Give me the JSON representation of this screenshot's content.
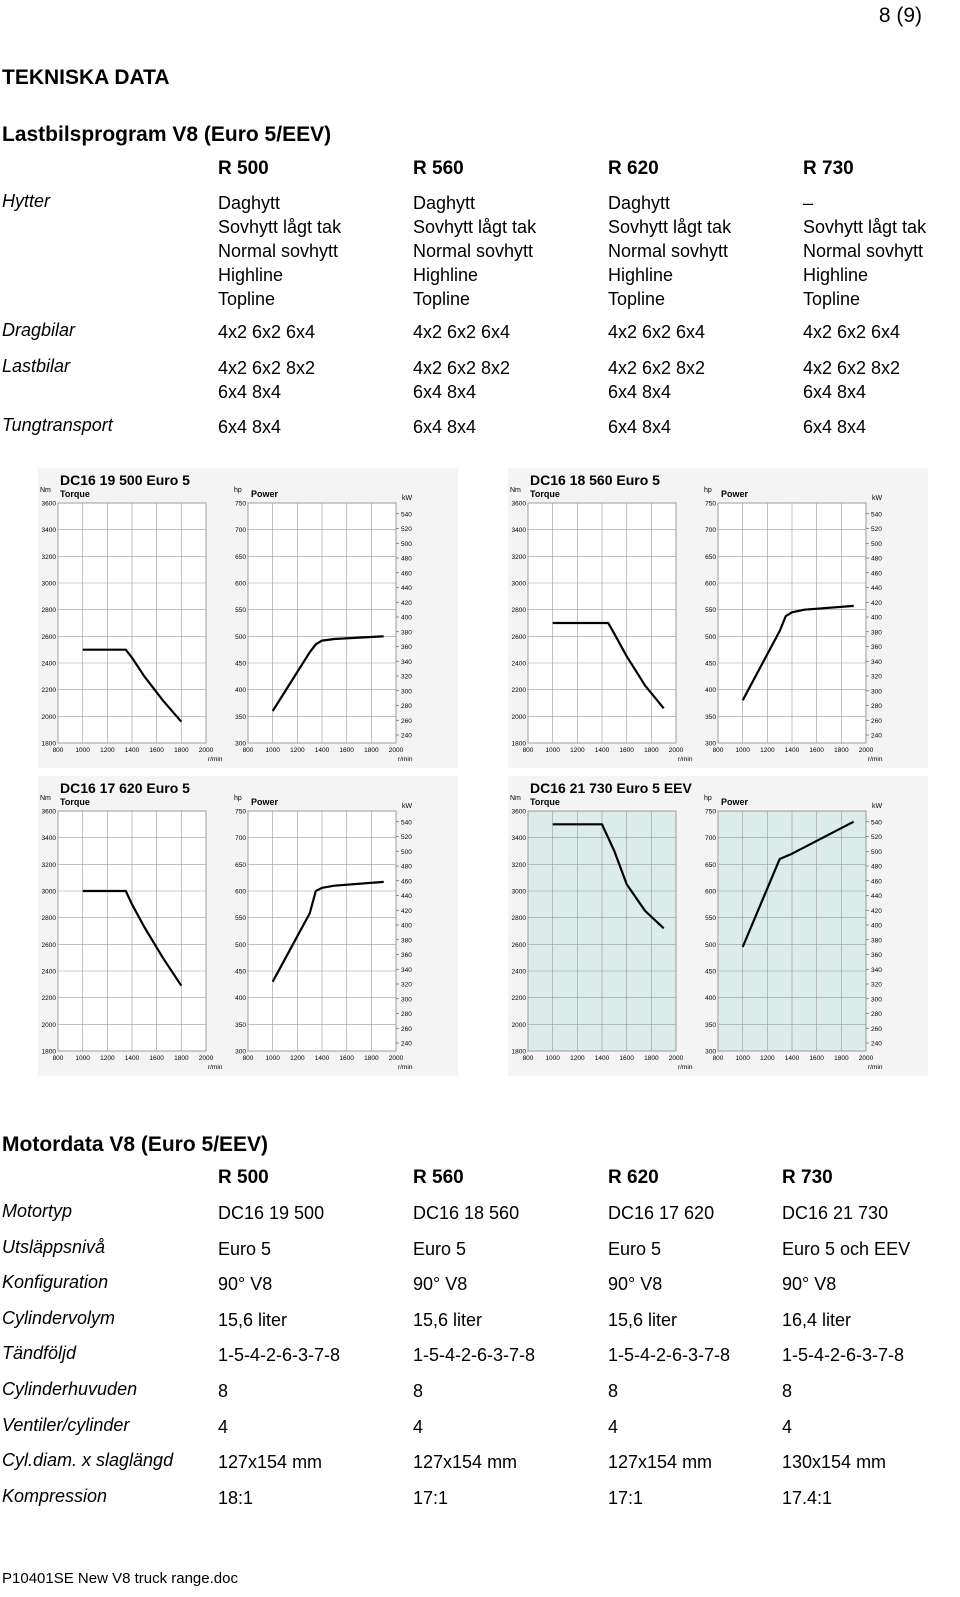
{
  "page_number": "8 (9)",
  "section_title": "TEKNISKA DATA",
  "program_title": "Lastbilsprogram V8 (Euro 5/EEV)",
  "models": [
    "R 500",
    "R 560",
    "R 620",
    "R 730"
  ],
  "program_rows": [
    {
      "label": "Hytter",
      "cells": [
        [
          "Daghytt",
          "Sovhytt lågt tak",
          "Normal sovhytt",
          "Highline",
          "Topline"
        ],
        [
          "Daghytt",
          "Sovhytt lågt tak",
          "Normal sovhytt",
          "Highline",
          "Topline"
        ],
        [
          "Daghytt",
          "Sovhytt lågt tak",
          "Normal sovhytt",
          "Highline",
          "Topline"
        ],
        [
          "–",
          "Sovhytt lågt tak",
          "Normal sovhytt",
          "Highline",
          "Topline"
        ]
      ]
    },
    {
      "label": "Dragbilar",
      "cells": [
        [
          "4x2 6x2 6x4"
        ],
        [
          "4x2 6x2 6x4"
        ],
        [
          "4x2 6x2 6x4"
        ],
        [
          "4x2 6x2 6x4"
        ]
      ]
    },
    {
      "label": "Lastbilar",
      "cells": [
        [
          "4x2 6x2 8x2",
          "6x4 8x4"
        ],
        [
          "4x2 6x2 8x2",
          "6x4 8x4"
        ],
        [
          "4x2 6x2 8x2",
          "6x4 8x4"
        ],
        [
          "4x2 6x2 8x2",
          "6x4 8x4"
        ]
      ]
    },
    {
      "label": "Tungtransport",
      "cells": [
        [
          "6x4 8x4"
        ],
        [
          "6x4 8x4"
        ],
        [
          "6x4 8x4"
        ],
        [
          "6x4 8x4"
        ]
      ]
    }
  ],
  "chart_data": [
    {
      "type": "line",
      "title": "DC16 19 500 Euro 5",
      "torque_label": "Torque",
      "power_label": "Power",
      "x_unit": "r/min",
      "torque_unit": "Nm",
      "power_unit_hp": "hp",
      "power_unit_kw": "kW",
      "x_ticks": [
        "800",
        "1000",
        "1200",
        "1400",
        "1600",
        "1800",
        "2000"
      ],
      "torque_ticks": [
        "1800",
        "2000",
        "2200",
        "2400",
        "2600",
        "2800",
        "3000",
        "3200",
        "3400",
        "3600"
      ],
      "hp_ticks": [
        "300",
        "350",
        "400",
        "450",
        "500",
        "550",
        "600",
        "650",
        "700",
        "750"
      ],
      "kw_ticks": [
        "240",
        "260",
        "280",
        "300",
        "320",
        "340",
        "360",
        "380",
        "400",
        "420",
        "440",
        "460",
        "480",
        "500",
        "520",
        "540"
      ],
      "xlim": [
        800,
        2000
      ],
      "torque_ylim": [
        1800,
        3600
      ],
      "hp_ylim": [
        300,
        750
      ],
      "torque": {
        "x": [
          1000,
          1350,
          1400,
          1500,
          1650,
          1800
        ],
        "y": [
          2500,
          2500,
          2440,
          2300,
          2120,
          1960
        ]
      },
      "power": {
        "x": [
          1000,
          1300,
          1350,
          1400,
          1500,
          1900
        ],
        "y": [
          360,
          470,
          485,
          492,
          495,
          500
        ]
      },
      "background": "#ffffff"
    },
    {
      "type": "line",
      "title": "DC16 18 560 Euro 5",
      "torque_label": "Torque",
      "power_label": "Power",
      "x_unit": "r/min",
      "torque_unit": "Nm",
      "power_unit_hp": "hp",
      "power_unit_kw": "kW",
      "x_ticks": [
        "800",
        "1000",
        "1200",
        "1400",
        "1600",
        "1800",
        "2000"
      ],
      "torque_ticks": [
        "1800",
        "2000",
        "2200",
        "2400",
        "2600",
        "2800",
        "3000",
        "3200",
        "3400",
        "3600"
      ],
      "hp_ticks": [
        "300",
        "350",
        "400",
        "450",
        "500",
        "550",
        "600",
        "650",
        "700",
        "750"
      ],
      "kw_ticks": [
        "240",
        "260",
        "280",
        "300",
        "320",
        "340",
        "360",
        "380",
        "400",
        "420",
        "440",
        "460",
        "480",
        "500",
        "520",
        "540"
      ],
      "xlim": [
        800,
        2000
      ],
      "torque_ylim": [
        1800,
        3600
      ],
      "hp_ylim": [
        300,
        750
      ],
      "torque": {
        "x": [
          1000,
          1450,
          1500,
          1600,
          1750,
          1900
        ],
        "y": [
          2700,
          2700,
          2620,
          2450,
          2230,
          2060
        ]
      },
      "power": {
        "x": [
          1000,
          1300,
          1350,
          1400,
          1500,
          1900
        ],
        "y": [
          380,
          510,
          538,
          545,
          550,
          557
        ]
      },
      "background": "#ffffff"
    },
    {
      "type": "line",
      "title": "DC16 17 620 Euro 5",
      "torque_label": "Torque",
      "power_label": "Power",
      "x_unit": "r/min",
      "torque_unit": "Nm",
      "power_unit_hp": "hp",
      "power_unit_kw": "kW",
      "x_ticks": [
        "800",
        "1000",
        "1200",
        "1400",
        "1600",
        "1800",
        "2000"
      ],
      "torque_ticks": [
        "1800",
        "2000",
        "2200",
        "2400",
        "2600",
        "2800",
        "3000",
        "3200",
        "3400",
        "3600"
      ],
      "hp_ticks": [
        "300",
        "350",
        "400",
        "450",
        "500",
        "550",
        "600",
        "650",
        "700",
        "750"
      ],
      "kw_ticks": [
        "240",
        "260",
        "280",
        "300",
        "320",
        "340",
        "360",
        "380",
        "400",
        "420",
        "440",
        "460",
        "480",
        "500",
        "520",
        "540"
      ],
      "xlim": [
        800,
        2000
      ],
      "torque_ylim": [
        1800,
        3600
      ],
      "hp_ylim": [
        300,
        750
      ],
      "torque": {
        "x": [
          1000,
          1350,
          1400,
          1500,
          1650,
          1800
        ],
        "y": [
          3000,
          3000,
          2900,
          2730,
          2500,
          2290
        ]
      },
      "power": {
        "x": [
          1000,
          1300,
          1350,
          1400,
          1500,
          1900
        ],
        "y": [
          430,
          558,
          600,
          606,
          610,
          617
        ]
      },
      "background": "#ffffff"
    },
    {
      "type": "line",
      "title": "DC16 21 730 Euro 5 EEV",
      "torque_label": "Torque",
      "power_label": "Power",
      "x_unit": "r/min",
      "torque_unit": "Nm",
      "power_unit_hp": "hp",
      "power_unit_kw": "kW",
      "x_ticks": [
        "800",
        "1000",
        "1200",
        "1400",
        "1600",
        "1800",
        "2000"
      ],
      "torque_ticks": [
        "1800",
        "2000",
        "2200",
        "2400",
        "2600",
        "2800",
        "3000",
        "3200",
        "3400",
        "3600"
      ],
      "hp_ticks": [
        "300",
        "350",
        "400",
        "450",
        "500",
        "550",
        "600",
        "650",
        "700",
        "750"
      ],
      "kw_ticks": [
        "240",
        "260",
        "280",
        "300",
        "320",
        "340",
        "360",
        "380",
        "400",
        "420",
        "440",
        "460",
        "480",
        "500",
        "520",
        "540"
      ],
      "xlim": [
        800,
        2000
      ],
      "torque_ylim": [
        1800,
        3600
      ],
      "hp_ylim": [
        300,
        750
      ],
      "torque": {
        "x": [
          1000,
          1400,
          1500,
          1600,
          1750,
          1900
        ],
        "y": [
          3500,
          3500,
          3300,
          3050,
          2850,
          2720
        ]
      },
      "power": {
        "x": [
          1000,
          1300,
          1400,
          1900
        ],
        "y": [
          495,
          660,
          670,
          730
        ]
      },
      "background": "#dbeceb"
    }
  ],
  "motor_title": "Motordata V8 (Euro 5/EEV)",
  "motor_rows": [
    {
      "label": "Motortyp",
      "values": [
        "DC16 19 500",
        "DC16 18 560",
        "DC16 17 620",
        "DC16 21 730"
      ]
    },
    {
      "label": "Utsläppsnivå",
      "values": [
        "Euro 5",
        "Euro 5",
        "Euro 5",
        "Euro 5 och EEV"
      ]
    },
    {
      "label": "Konfiguration",
      "values": [
        "90° V8",
        "90° V8",
        "90° V8",
        "90° V8"
      ]
    },
    {
      "label": "Cylindervolym",
      "values": [
        "15,6 liter",
        "15,6 liter",
        "15,6 liter",
        "16,4 liter"
      ]
    },
    {
      "label": "Tändföljd",
      "values": [
        "1-5-4-2-6-3-7-8",
        "1-5-4-2-6-3-7-8",
        "1-5-4-2-6-3-7-8",
        "1-5-4-2-6-3-7-8"
      ]
    },
    {
      "label": "Cylinderhuvuden",
      "values": [
        "8",
        "8",
        "8",
        "8"
      ]
    },
    {
      "label": "Ventiler/cylinder",
      "values": [
        "4",
        "4",
        "4",
        "4"
      ]
    },
    {
      "label": "Cyl.diam. x slaglängd",
      "values": [
        "127x154 mm",
        "127x154 mm",
        "127x154 mm",
        "130x154 mm"
      ]
    },
    {
      "label": "Kompression",
      "values": [
        "18:1",
        "17:1",
        "17:1",
        "17.4:1"
      ]
    }
  ],
  "footer": "P10401SE New V8 truck range.doc"
}
